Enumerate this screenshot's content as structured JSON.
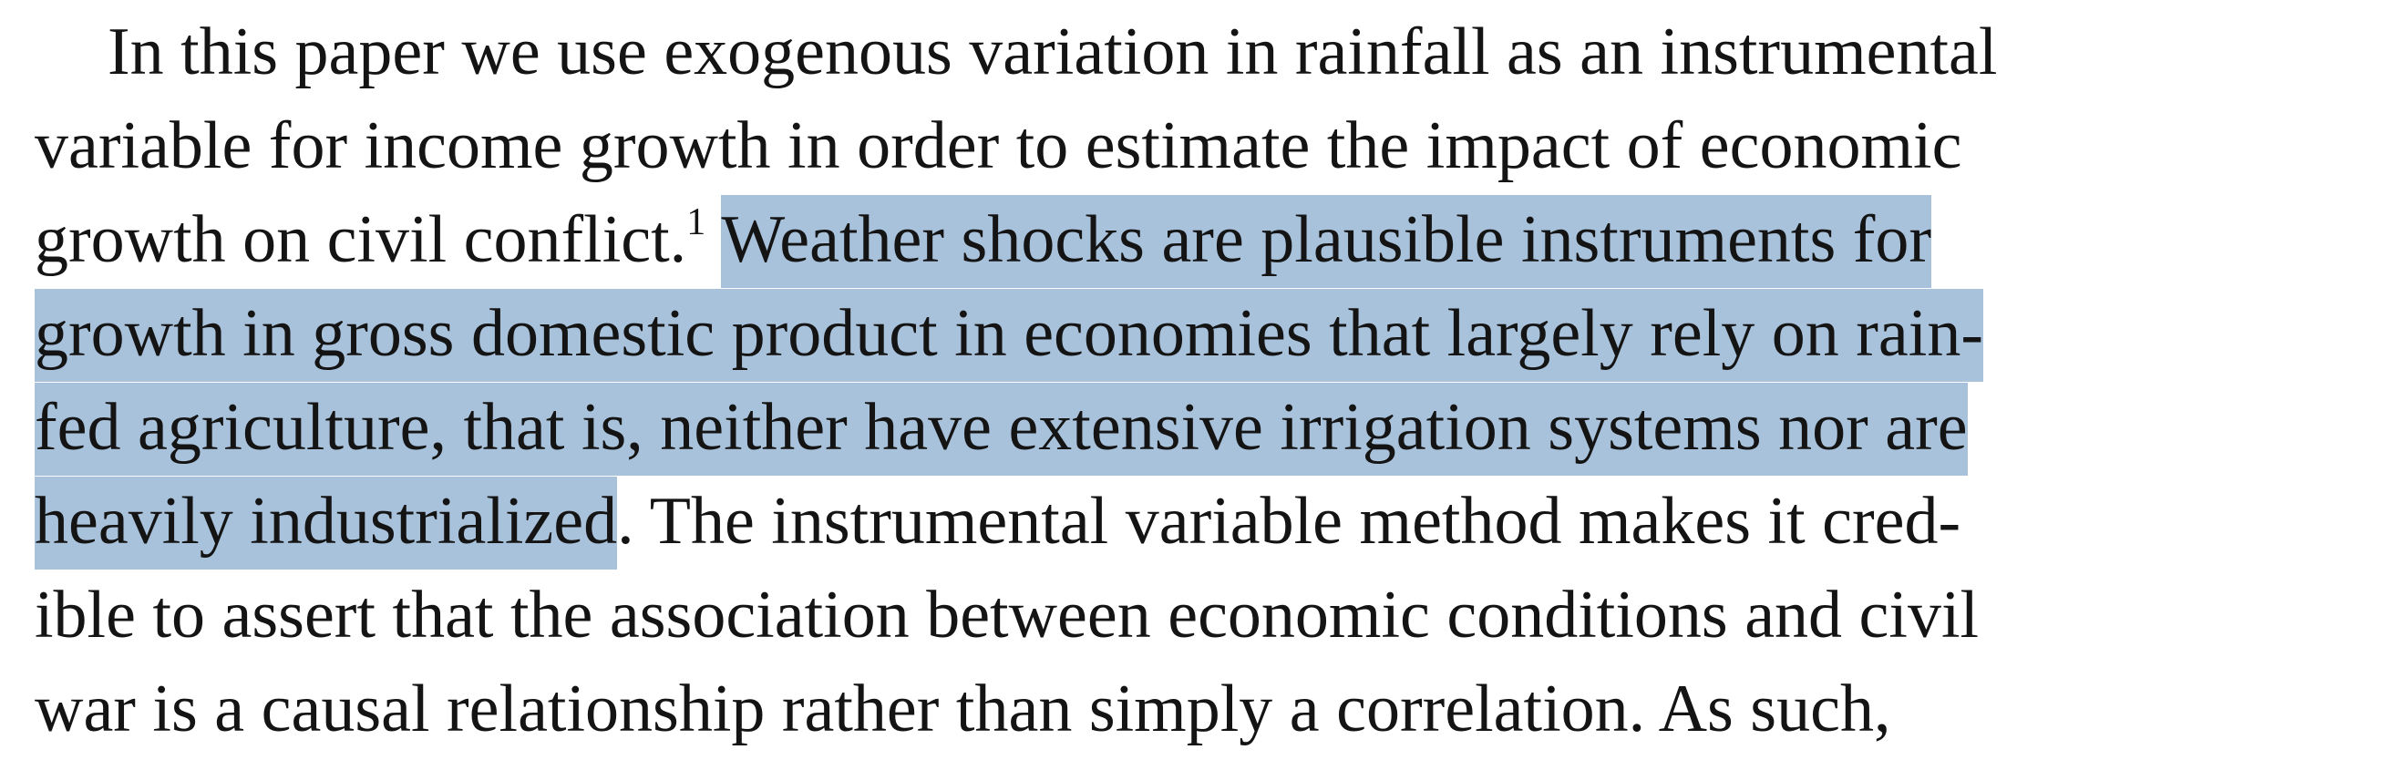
{
  "paragraph": {
    "line1": "In this paper we use exogenous variation in rainfall as an instrumental",
    "line2": "variable for income growth in order to estimate the impact of economic",
    "line3_before": "growth on civil conflict.",
    "footnote_marker": "1",
    "line3_highlight": "Weather shocks are plausible instruments for",
    "line4_highlight": "growth in gross domestic product in economies that largely rely on rain-",
    "line5_highlight": "fed agriculture, that is, neither have extensive irrigation systems nor are",
    "line6_highlight": "heavily industrialized",
    "line6_after": ". The instrumental variable method makes it cred-",
    "line7": "ible to assert that the association between economic conditions and civil",
    "line8": "war is a causal relationship rather than simply a correlation. As such,"
  },
  "colors": {
    "highlight": "#a9c2db",
    "text": "#141414"
  }
}
